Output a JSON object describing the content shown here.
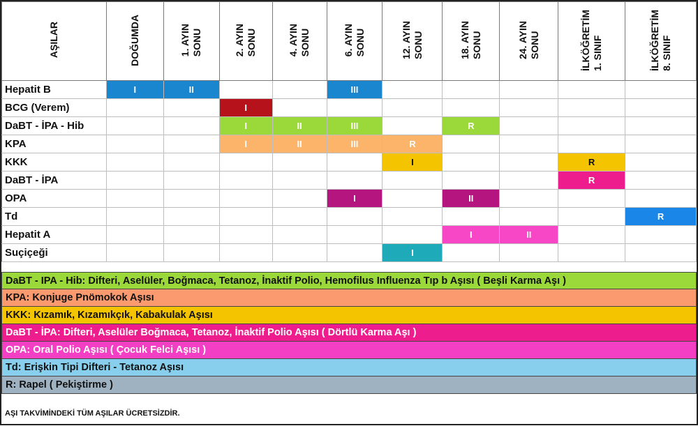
{
  "columns": {
    "vaccine": "AŞILAR",
    "c1": "DOĞUMDA",
    "c2": "1. AYIN\nSONU",
    "c3": "2. AYIN\nSONU",
    "c4": "4. AYIN\nSONU",
    "c5": "6. AYIN\nSONU",
    "c6": "12. AYIN\nSONU",
    "c7": "18. AYIN\nSONU",
    "c8": "24. AYIN\nSONU",
    "c9": "İLKÖĞRETİM\n1. SINIF",
    "c10": "İLKÖĞRETİM\n8. SINIF"
  },
  "rows": [
    {
      "name": "Hepatit B",
      "color": "#1a86d0",
      "cells": [
        "I",
        "II",
        "",
        "",
        "III",
        "",
        "",
        "",
        "",
        ""
      ]
    },
    {
      "name": "BCG (Verem)",
      "color": "#b5121b",
      "cells": [
        "",
        "",
        "I",
        "",
        "",
        "",
        "",
        "",
        "",
        ""
      ]
    },
    {
      "name": "DaBT - İPA - Hib",
      "color": "#9bd93b",
      "cells": [
        "",
        "",
        "I",
        "II",
        "III",
        "",
        "R",
        "",
        "",
        ""
      ]
    },
    {
      "name": "KPA",
      "color": "#fbb46a",
      "cells": [
        "",
        "",
        "I",
        "II",
        "III",
        "R",
        "",
        "",
        "",
        ""
      ]
    },
    {
      "name": "KKK",
      "color": "#f5c400",
      "cells": [
        "",
        "",
        "",
        "",
        "",
        "I",
        "",
        "",
        "R",
        ""
      ]
    },
    {
      "name": "DaBT - İPA",
      "color": "#ee1d8e",
      "cells": [
        "",
        "",
        "",
        "",
        "",
        "",
        "",
        "",
        "R",
        ""
      ]
    },
    {
      "name": "OPA",
      "color": "#b5157e",
      "cells": [
        "",
        "",
        "",
        "",
        "I",
        "",
        "II",
        "",
        "",
        ""
      ]
    },
    {
      "name": "Td",
      "color": "#1a86e8",
      "cells": [
        "",
        "",
        "",
        "",
        "",
        "",
        "",
        "",
        "",
        "R"
      ]
    },
    {
      "name": "Hepatit A",
      "color": "#f746c6",
      "cells": [
        "",
        "",
        "",
        "",
        "",
        "",
        "I",
        "II",
        "",
        ""
      ]
    },
    {
      "name": "Suçiçeği",
      "color": "#1eaab8",
      "cells": [
        "",
        "",
        "",
        "",
        "",
        "I",
        "",
        "",
        "",
        ""
      ]
    }
  ],
  "dark_text_rows": [
    "KKK"
  ],
  "legend": [
    {
      "text": "DaBT - IPA - Hib: Difteri, Aselüler, Boğmaca, Tetanoz, İnaktif Polio, Hemofilus Influenza Tıp b Aşısı ( Beşli Karma Aşı )",
      "color": "#9bd93b",
      "light": false
    },
    {
      "text": "KPA: Konjuge Pnömokok Aşısı",
      "color": "#fa9a6e",
      "light": false
    },
    {
      "text": "KKK: Kızamık, Kızamıkçık, Kabakulak Aşısı",
      "color": "#f5c400",
      "light": false
    },
    {
      "text": "DaBT - İPA: Difteri, Aselüler Boğmaca, Tetanoz, İnaktif Polio Aşısı ( Dörtlü Karma Aşı )",
      "color": "#ee1d8e",
      "light": true
    },
    {
      "text": "OPA: Oral Polio Aşısı ( Çocuk Felci Aşısı )",
      "color": "#f23fc4",
      "light": true
    },
    {
      "text": "Td: Erişkin Tipi Difteri - Tetanoz Aşısı",
      "color": "#88cfee",
      "light": false
    },
    {
      "text": "R: Rapel ( Pekiştirme )",
      "color": "#9eb2c2",
      "light": false
    }
  ],
  "footer": "AŞI TAKVİMİNDEKİ TÜM AŞILAR ÜCRETSİZDİR."
}
